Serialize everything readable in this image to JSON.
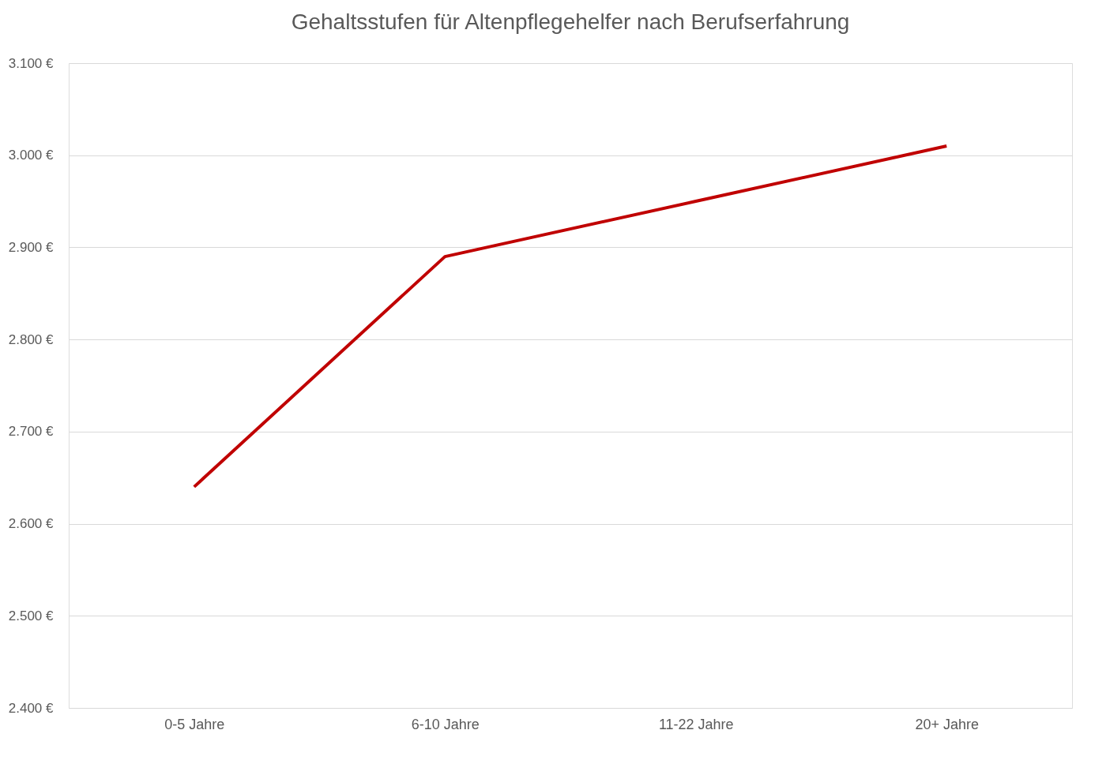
{
  "chart_data": {
    "type": "line",
    "title": "Gehaltsstufen für Altenpflegehelfer nach Berufserfahrung",
    "categories": [
      "0-5 Jahre",
      "6-10 Jahre",
      "11-22 Jahre",
      "20+ Jahre"
    ],
    "series": [
      {
        "color": "#c00000",
        "values": [
          2640,
          2890,
          2950,
          3010
        ]
      }
    ],
    "ylim": [
      2400,
      3100
    ],
    "yticks": [
      {
        "value": 2400,
        "label": "2.400 €"
      },
      {
        "value": 2500,
        "label": "2.500 €"
      },
      {
        "value": 2600,
        "label": "2.600 €"
      },
      {
        "value": 2700,
        "label": "2.700 €"
      },
      {
        "value": 2800,
        "label": "2.800 €"
      },
      {
        "value": 2900,
        "label": "2.900 €"
      },
      {
        "value": 3000,
        "label": "3.000 €"
      },
      {
        "value": 3100,
        "label": "3.100 €"
      }
    ],
    "grid": "y",
    "marker": "none",
    "line_style": "solid"
  }
}
